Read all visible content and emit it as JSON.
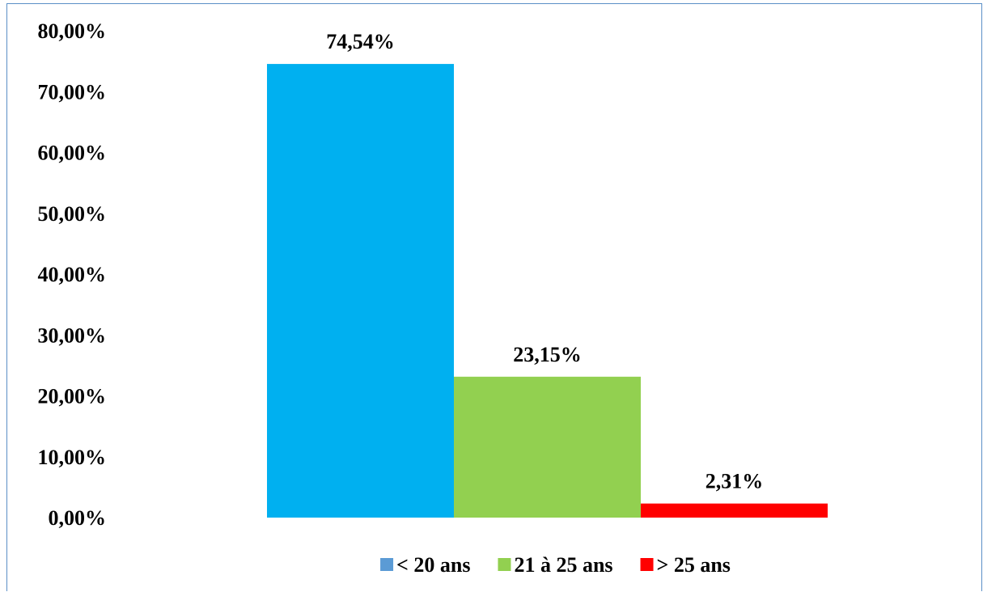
{
  "chart_data": {
    "type": "bar",
    "title": "",
    "xlabel": "",
    "ylabel": "",
    "ylim": [
      0,
      80
    ],
    "y_ticks": [
      {
        "value": 80,
        "label": "80,00%"
      },
      {
        "value": 70,
        "label": "70,00%"
      },
      {
        "value": 60,
        "label": "60,00%"
      },
      {
        "value": 50,
        "label": "50,00%"
      },
      {
        "value": 40,
        "label": "40,00%"
      },
      {
        "value": 30,
        "label": "30,00%"
      },
      {
        "value": 20,
        "label": "20,00%"
      },
      {
        "value": 10,
        "label": "10,00%"
      },
      {
        "value": 0,
        "label": "0,00%"
      }
    ],
    "grid": false,
    "legend_position": "bottom",
    "series": [
      {
        "name": "< 20 ans",
        "value": 74.54,
        "label": "74,54%",
        "color": "#00b0f0",
        "legend_color": "#5b9bd5"
      },
      {
        "name": "21 à 25 ans",
        "value": 23.15,
        "label": "23,15%",
        "color": "#92d050",
        "legend_color": "#92d050"
      },
      {
        "name": "> 25 ans",
        "value": 2.31,
        "label": "2,31%",
        "color": "#ff0000",
        "legend_color": "#ff0000"
      }
    ]
  }
}
